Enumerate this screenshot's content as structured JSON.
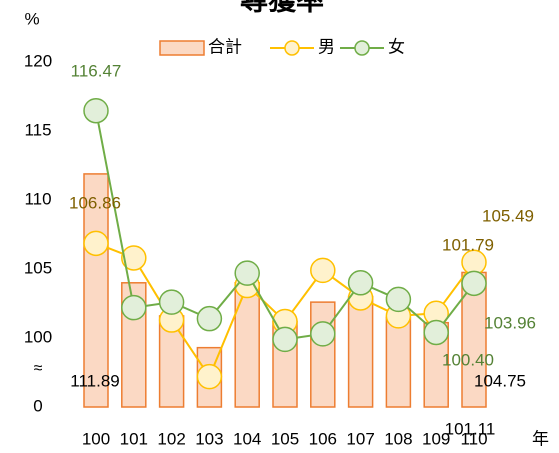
{
  "chart_data": {
    "type": "bar_line",
    "title": "尋獲率",
    "y_label": "%",
    "x_label": "年",
    "categories": [
      "100",
      "101",
      "102",
      "103",
      "104",
      "105",
      "106",
      "107",
      "108",
      "109",
      "110"
    ],
    "ylim": [
      0,
      120
    ],
    "axis_break": [
      0,
      95
    ],
    "yticks": [
      0,
      100,
      105,
      110,
      115,
      120
    ],
    "series": [
      {
        "name": "合計",
        "type": "bar",
        "color": "#ed7d31",
        "fill": "#fbd9c4",
        "values": [
          111.89,
          104.0,
          101.6,
          99.3,
          104.0,
          101.2,
          102.6,
          103.0,
          101.5,
          101.11,
          104.75
        ],
        "value_labels": [
          "111.89",
          null,
          null,
          null,
          null,
          null,
          null,
          null,
          null,
          "101.11",
          "104.75"
        ]
      },
      {
        "name": "男",
        "type": "line",
        "color": "#ffc000",
        "fill": "#fff2cc",
        "label_color": "#7f6000",
        "values": [
          106.86,
          105.8,
          101.3,
          97.2,
          103.8,
          101.2,
          104.9,
          102.9,
          101.6,
          101.79,
          105.49
        ],
        "value_labels": [
          "106.86",
          null,
          null,
          null,
          null,
          null,
          null,
          null,
          null,
          "101.79",
          "105.49"
        ]
      },
      {
        "name": "女",
        "type": "line",
        "color": "#70ad47",
        "fill": "#e2efda",
        "label_color": "#548235",
        "values": [
          116.47,
          102.2,
          102.6,
          101.4,
          104.7,
          99.9,
          100.3,
          104.0,
          102.8,
          100.4,
          103.96
        ],
        "value_labels": [
          "116.47",
          null,
          null,
          null,
          null,
          null,
          null,
          null,
          null,
          "100.40",
          "103.96"
        ]
      }
    ]
  }
}
